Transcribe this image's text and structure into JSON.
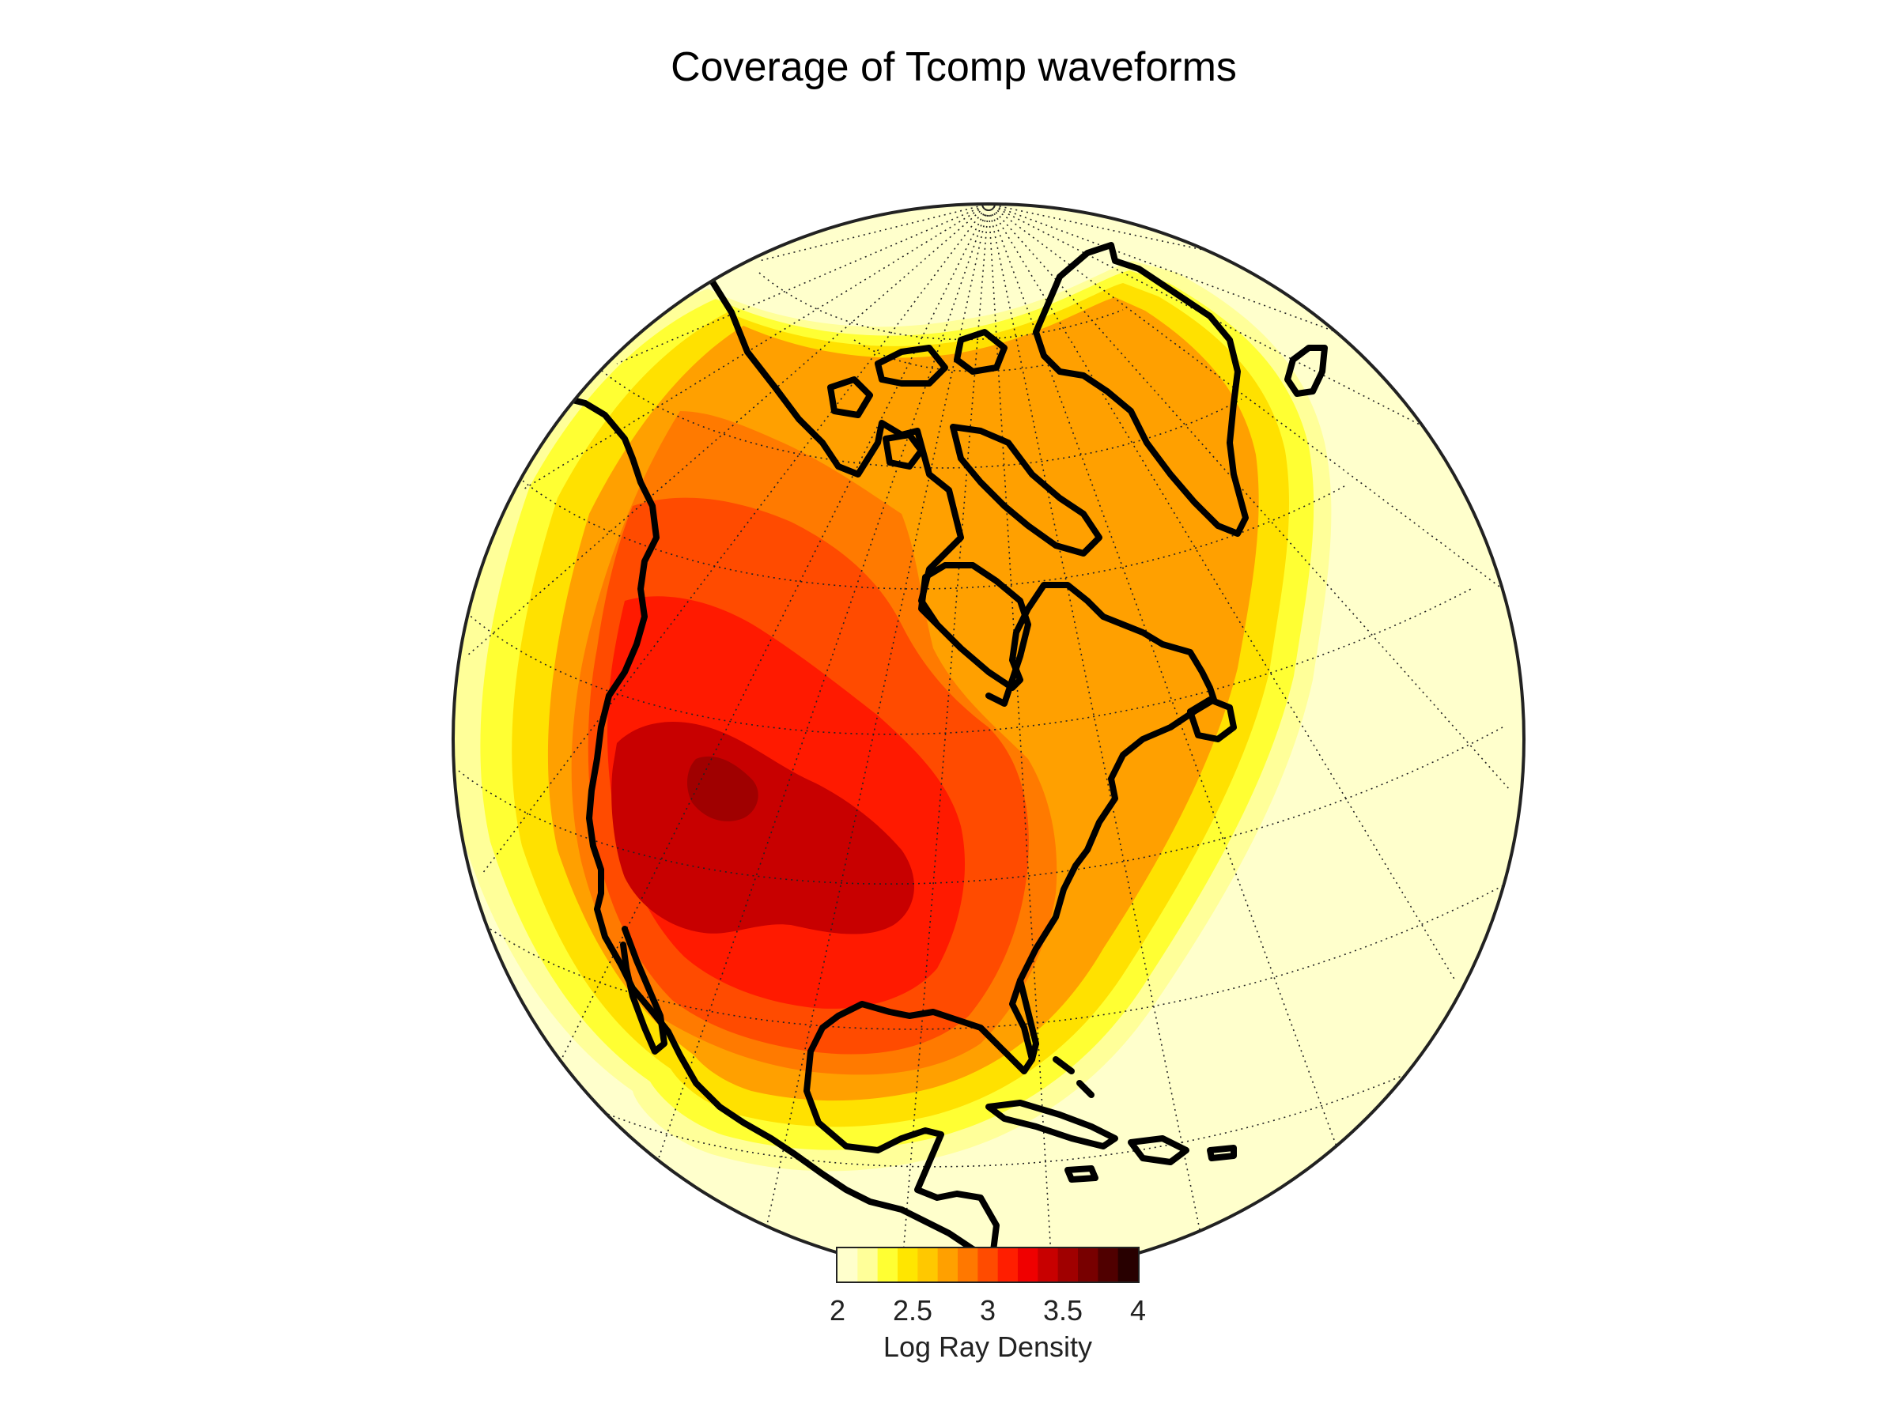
{
  "title": "Coverage of Tcomp waveforms",
  "map": {
    "projection": "orthographic",
    "background_color": "#ffffcc",
    "rim_color": "#222222",
    "graticule": "dotted",
    "coastline_color": "#000000",
    "field": "log ray density",
    "field_levels": [
      {
        "name": "edge",
        "value": 2.1
      },
      {
        "name": "outer-yellow",
        "value": 2.3
      },
      {
        "name": "gold",
        "value": 2.5
      },
      {
        "name": "orange",
        "value": 2.7
      },
      {
        "name": "dark-orange",
        "value": 2.85
      },
      {
        "name": "orange-red",
        "value": 2.95
      },
      {
        "name": "red",
        "value": 3.15
      },
      {
        "name": "crimson",
        "value": 3.3
      },
      {
        "name": "core",
        "value": 3.45
      }
    ]
  },
  "colorbar": {
    "label": "Log Ray Density",
    "min": 2,
    "max": 4,
    "ticks": [
      "2",
      "2.5",
      "3",
      "3.5",
      "4"
    ],
    "tick_values": [
      2,
      2.5,
      3,
      3.5,
      4
    ],
    "colors": [
      "#ffffcc",
      "#ffff99",
      "#ffff33",
      "#ffe600",
      "#ffc800",
      "#ffa000",
      "#ff7800",
      "#ff4b00",
      "#ff1e00",
      "#f00000",
      "#c80000",
      "#a00000",
      "#780000",
      "#500000",
      "#280000"
    ]
  }
}
